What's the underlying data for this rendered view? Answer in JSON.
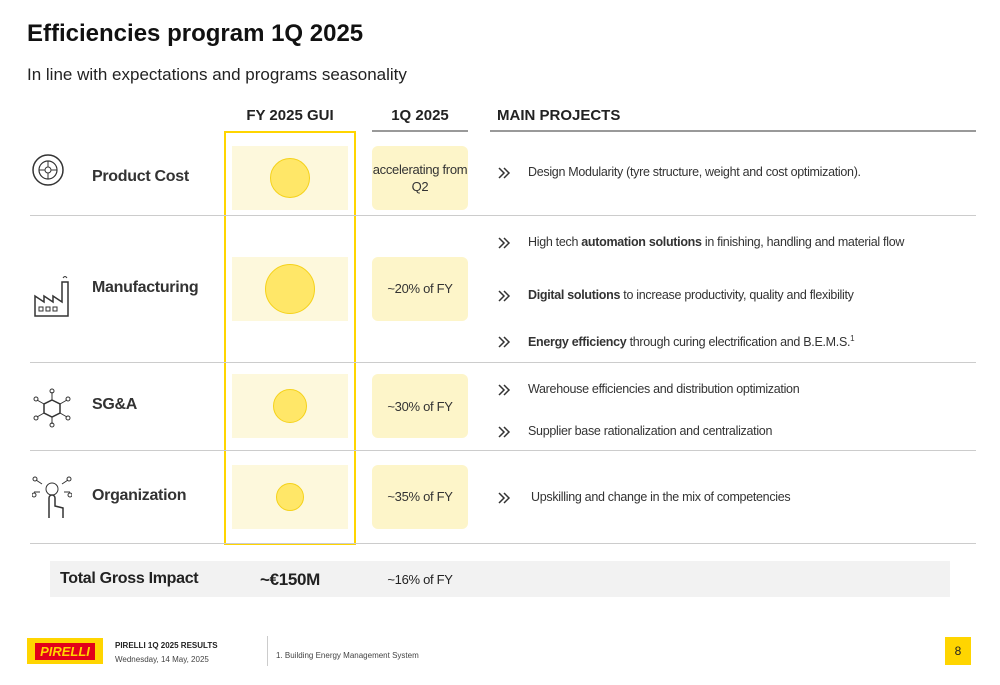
{
  "header": {
    "title": "Efficiencies program 1Q 2025",
    "subtitle": "In line with expectations and programs seasonality"
  },
  "columns": [
    "FY 2025 GUI",
    "1Q 2025",
    "MAIN PROJECTS"
  ],
  "rows": [
    {
      "label": "Product Cost",
      "q1": "accelerating from Q2",
      "projects": [
        {
          "pre": "Design Modularity (tyre structure, weight and cost optimization)."
        }
      ]
    },
    {
      "label": "Manufacturing",
      "q1": "~20% of FY",
      "projects": [
        {
          "pre": "High tech ",
          "bold": "automation solutions",
          "post": " in finishing, handling and material flow"
        },
        {
          "bold": "Digital solutions",
          "post": " to increase productivity, quality and flexibility"
        },
        {
          "bold": "Energy efficiency",
          "post": " through curing electrification and B.E.M.S.",
          "sup": "1"
        }
      ]
    },
    {
      "label": "SG&A",
      "q1": "~30% of FY",
      "projects": [
        {
          "pre": "Warehouse efficiencies and distribution optimization"
        },
        {
          "pre": "Supplier base rationalization and centralization"
        }
      ]
    },
    {
      "label": "Organization",
      "q1": "~35% of FY",
      "projects": [
        {
          "pre": "Upskilling and change in the mix of competencies"
        }
      ]
    }
  ],
  "total": {
    "label": "Total Gross Impact",
    "fy": "~€150M",
    "q1": "~16% of FY"
  },
  "footer": {
    "logo": "PIRELLI",
    "company": "PIRELLI 1Q 2025 RESULTS",
    "date": "Wednesday, 14 May, 2025",
    "note": "1. Building Energy Management System",
    "page": "8"
  }
}
